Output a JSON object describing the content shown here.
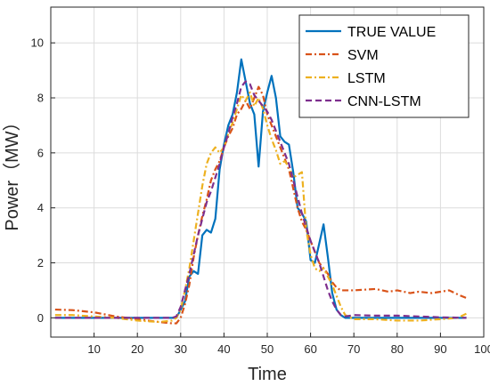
{
  "chart_data": {
    "type": "line",
    "xlabel": "Time",
    "ylabel": "Power（MW）",
    "xlim": [
      0,
      100
    ],
    "ylim": [
      -0.7,
      11.3
    ],
    "xticks": [
      10,
      20,
      30,
      40,
      50,
      60,
      70,
      80,
      90,
      100
    ],
    "yticks": [
      0,
      2,
      4,
      6,
      8,
      10
    ],
    "grid": true,
    "legend_position": "top-right",
    "series": [
      {
        "name": "TRUE VALUE",
        "color": "#0072BD",
        "dash": "solid",
        "points": [
          [
            1,
            0
          ],
          [
            5,
            0
          ],
          [
            10,
            0
          ],
          [
            15,
            0
          ],
          [
            20,
            0
          ],
          [
            25,
            0
          ],
          [
            28,
            0
          ],
          [
            29,
            0
          ],
          [
            30,
            0.3
          ],
          [
            31,
            0.6
          ],
          [
            32,
            1.5
          ],
          [
            33,
            1.7
          ],
          [
            34,
            1.6
          ],
          [
            35,
            3
          ],
          [
            36,
            3.2
          ],
          [
            37,
            3.1
          ],
          [
            38,
            3.6
          ],
          [
            39,
            5.4
          ],
          [
            40,
            6.3
          ],
          [
            41,
            7
          ],
          [
            42,
            7.4
          ],
          [
            43,
            8.2
          ],
          [
            44,
            9.4
          ],
          [
            45,
            8.6
          ],
          [
            46,
            7.8
          ],
          [
            47,
            7.4
          ],
          [
            48,
            5.5
          ],
          [
            49,
            7.5
          ],
          [
            50,
            8.2
          ],
          [
            51,
            8.8
          ],
          [
            52,
            8
          ],
          [
            53,
            6.6
          ],
          [
            54,
            6.4
          ],
          [
            55,
            6.3
          ],
          [
            56,
            5.3
          ],
          [
            57,
            4
          ],
          [
            58,
            3.8
          ],
          [
            59,
            3.5
          ],
          [
            60,
            2.1
          ],
          [
            61,
            2
          ],
          [
            62,
            2.7
          ],
          [
            63,
            3.4
          ],
          [
            64,
            2.2
          ],
          [
            65,
            0.9
          ],
          [
            66,
            0.3
          ],
          [
            67,
            0.1
          ],
          [
            68,
            0
          ],
          [
            70,
            0
          ],
          [
            75,
            0
          ],
          [
            80,
            0
          ],
          [
            85,
            0
          ],
          [
            90,
            0
          ],
          [
            96,
            0
          ]
        ]
      },
      {
        "name": "SVM",
        "color": "#D95319",
        "dash": "dashdot",
        "points": [
          [
            1,
            0.3
          ],
          [
            5,
            0.28
          ],
          [
            10,
            0.2
          ],
          [
            15,
            0.05
          ],
          [
            20,
            -0.05
          ],
          [
            25,
            -0.15
          ],
          [
            28,
            -0.2
          ],
          [
            29,
            -0.2
          ],
          [
            30,
            0
          ],
          [
            31,
            0.5
          ],
          [
            32,
            1.2
          ],
          [
            33,
            2.2
          ],
          [
            34,
            3
          ],
          [
            35,
            3.7
          ],
          [
            36,
            4.3
          ],
          [
            37,
            5
          ],
          [
            38,
            5.4
          ],
          [
            39,
            5.7
          ],
          [
            40,
            6.2
          ],
          [
            41,
            6.6
          ],
          [
            42,
            6.9
          ],
          [
            43,
            7.4
          ],
          [
            44,
            7.6
          ],
          [
            45,
            7.9
          ],
          [
            46,
            7.6
          ],
          [
            47,
            8
          ],
          [
            48,
            8.4
          ],
          [
            49,
            8.1
          ],
          [
            50,
            7.4
          ],
          [
            51,
            7
          ],
          [
            52,
            6.6
          ],
          [
            53,
            6.2
          ],
          [
            54,
            5.8
          ],
          [
            55,
            5.4
          ],
          [
            56,
            4.7
          ],
          [
            57,
            4
          ],
          [
            58,
            3.5
          ],
          [
            59,
            3.2
          ],
          [
            60,
            2.8
          ],
          [
            61,
            2.4
          ],
          [
            62,
            2
          ],
          [
            63,
            1.8
          ],
          [
            64,
            1.6
          ],
          [
            65,
            1.3
          ],
          [
            66,
            1.1
          ],
          [
            67,
            1
          ],
          [
            70,
            1
          ],
          [
            75,
            1.05
          ],
          [
            78,
            0.95
          ],
          [
            80,
            1
          ],
          [
            83,
            0.9
          ],
          [
            85,
            0.95
          ],
          [
            88,
            0.9
          ],
          [
            90,
            0.95
          ],
          [
            92,
            1
          ],
          [
            94,
            0.85
          ],
          [
            96,
            0.72
          ]
        ]
      },
      {
        "name": "LSTM",
        "color": "#EDB120",
        "dash": "dashdot",
        "points": [
          [
            1,
            0.1
          ],
          [
            5,
            0.1
          ],
          [
            10,
            0.05
          ],
          [
            15,
            0
          ],
          [
            20,
            -0.1
          ],
          [
            25,
            -0.15
          ],
          [
            28,
            -0.1
          ],
          [
            29,
            0
          ],
          [
            30,
            0.3
          ],
          [
            31,
            1
          ],
          [
            32,
            1.8
          ],
          [
            33,
            2.8
          ],
          [
            34,
            3.8
          ],
          [
            35,
            4.8
          ],
          [
            36,
            5.6
          ],
          [
            37,
            6
          ],
          [
            38,
            6.2
          ],
          [
            39,
            6
          ],
          [
            40,
            6.2
          ],
          [
            41,
            6.7
          ],
          [
            42,
            7.1
          ],
          [
            43,
            7.6
          ],
          [
            44,
            8.1
          ],
          [
            45,
            7.9
          ],
          [
            46,
            8.2
          ],
          [
            47,
            7.7
          ],
          [
            48,
            8
          ],
          [
            49,
            7.6
          ],
          [
            50,
            7
          ],
          [
            51,
            6.5
          ],
          [
            52,
            6.1
          ],
          [
            53,
            5.6
          ],
          [
            54,
            5.7
          ],
          [
            55,
            5.5
          ],
          [
            56,
            5.1
          ],
          [
            57,
            5.2
          ],
          [
            58,
            5.3
          ],
          [
            59,
            3.2
          ],
          [
            60,
            2.3
          ],
          [
            61,
            1.8
          ],
          [
            62,
            1.7
          ],
          [
            63,
            1.8
          ],
          [
            64,
            1.5
          ],
          [
            65,
            1.2
          ],
          [
            66,
            0.8
          ],
          [
            67,
            0.4
          ],
          [
            68,
            0.1
          ],
          [
            70,
            -0.05
          ],
          [
            75,
            -0.05
          ],
          [
            80,
            -0.1
          ],
          [
            85,
            -0.1
          ],
          [
            90,
            -0.05
          ],
          [
            94,
            0
          ],
          [
            96,
            0.15
          ]
        ]
      },
      {
        "name": "CNN-LSTM",
        "color": "#7E2F8E",
        "dash": "dashed",
        "points": [
          [
            1,
            0
          ],
          [
            5,
            0
          ],
          [
            10,
            0
          ],
          [
            15,
            0
          ],
          [
            20,
            0
          ],
          [
            25,
            0
          ],
          [
            28,
            0
          ],
          [
            29,
            0.05
          ],
          [
            30,
            0.4
          ],
          [
            31,
            1
          ],
          [
            32,
            1.6
          ],
          [
            33,
            2.3
          ],
          [
            34,
            3
          ],
          [
            35,
            3.6
          ],
          [
            36,
            4.2
          ],
          [
            37,
            4.6
          ],
          [
            38,
            5.1
          ],
          [
            39,
            5.6
          ],
          [
            40,
            6.2
          ],
          [
            41,
            6.7
          ],
          [
            42,
            7.3
          ],
          [
            43,
            7.8
          ],
          [
            44,
            8.4
          ],
          [
            45,
            8.6
          ],
          [
            46,
            8.5
          ],
          [
            47,
            8.1
          ],
          [
            48,
            7.9
          ],
          [
            49,
            7.7
          ],
          [
            50,
            7.5
          ],
          [
            51,
            7.2
          ],
          [
            52,
            6.8
          ],
          [
            53,
            6.4
          ],
          [
            54,
            6
          ],
          [
            55,
            5.6
          ],
          [
            56,
            5
          ],
          [
            57,
            4.4
          ],
          [
            58,
            3.8
          ],
          [
            59,
            3.3
          ],
          [
            60,
            2.8
          ],
          [
            61,
            2.4
          ],
          [
            62,
            2
          ],
          [
            63,
            1.5
          ],
          [
            64,
            1
          ],
          [
            65,
            0.6
          ],
          [
            66,
            0.3
          ],
          [
            67,
            0.1
          ],
          [
            68,
            0.05
          ],
          [
            70,
            0.1
          ],
          [
            75,
            0.08
          ],
          [
            80,
            0.08
          ],
          [
            85,
            0.05
          ],
          [
            90,
            0.02
          ],
          [
            96,
            0
          ]
        ]
      }
    ]
  }
}
